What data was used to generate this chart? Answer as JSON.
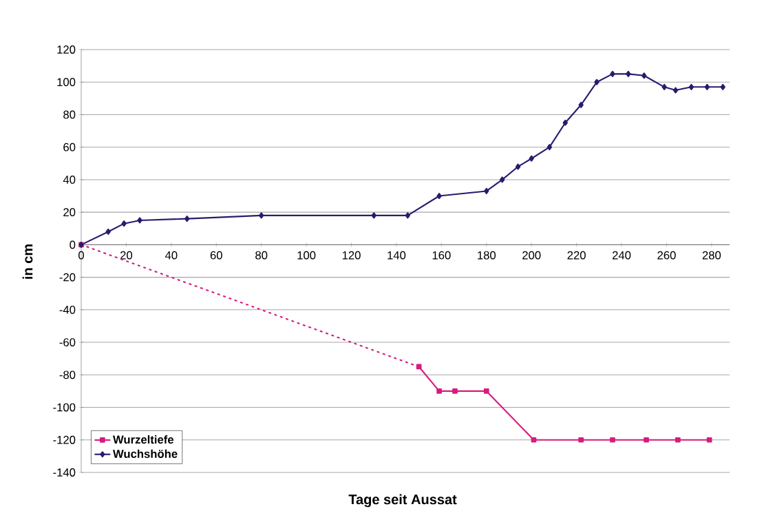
{
  "chart_data": {
    "type": "line",
    "xlabel": "Tage seit Aussat",
    "ylabel": "in cm",
    "xlim": [
      0,
      288
    ],
    "xticks": [
      0,
      20,
      40,
      60,
      80,
      100,
      120,
      140,
      160,
      180,
      200,
      220,
      240,
      260,
      280
    ],
    "ylim": [
      -140,
      120
    ],
    "yticks": [
      -140,
      -120,
      -100,
      -80,
      -60,
      -40,
      -20,
      0,
      20,
      40,
      60,
      80,
      100,
      120
    ],
    "grid": "y",
    "legend": "bottom left",
    "series": [
      {
        "color": "#d81b7f",
        "line_style": "dotted",
        "x": [
          0,
          150
        ],
        "values": [
          0,
          -75
        ]
      },
      {
        "name": "Wurzeltiefe",
        "color": "#d81b7f",
        "marker": "square",
        "line_style": "solid",
        "x": [
          0,
          75,
          150,
          159,
          166,
          180,
          201,
          222,
          236,
          251,
          265,
          279
        ],
        "values": [
          0,
          null,
          -75,
          -90,
          -90,
          -90,
          -120,
          -120,
          -120,
          -120,
          -120,
          -120
        ]
      },
      {
        "name": "Wuchshöhe",
        "color": "#2b1a6e",
        "marker": "diamond",
        "line_style": "solid",
        "x": [
          0,
          12,
          19,
          26,
          47,
          80,
          130,
          145,
          159,
          180,
          187,
          194,
          200,
          208,
          215,
          222,
          229,
          236,
          243,
          250,
          259,
          264,
          271,
          278,
          285
        ],
        "values": [
          0,
          8,
          13,
          15,
          16,
          18,
          18,
          18,
          30,
          33,
          40,
          48,
          53,
          60,
          75,
          86,
          100,
          105,
          105,
          104,
          97,
          95,
          97,
          97,
          97
        ]
      }
    ]
  }
}
